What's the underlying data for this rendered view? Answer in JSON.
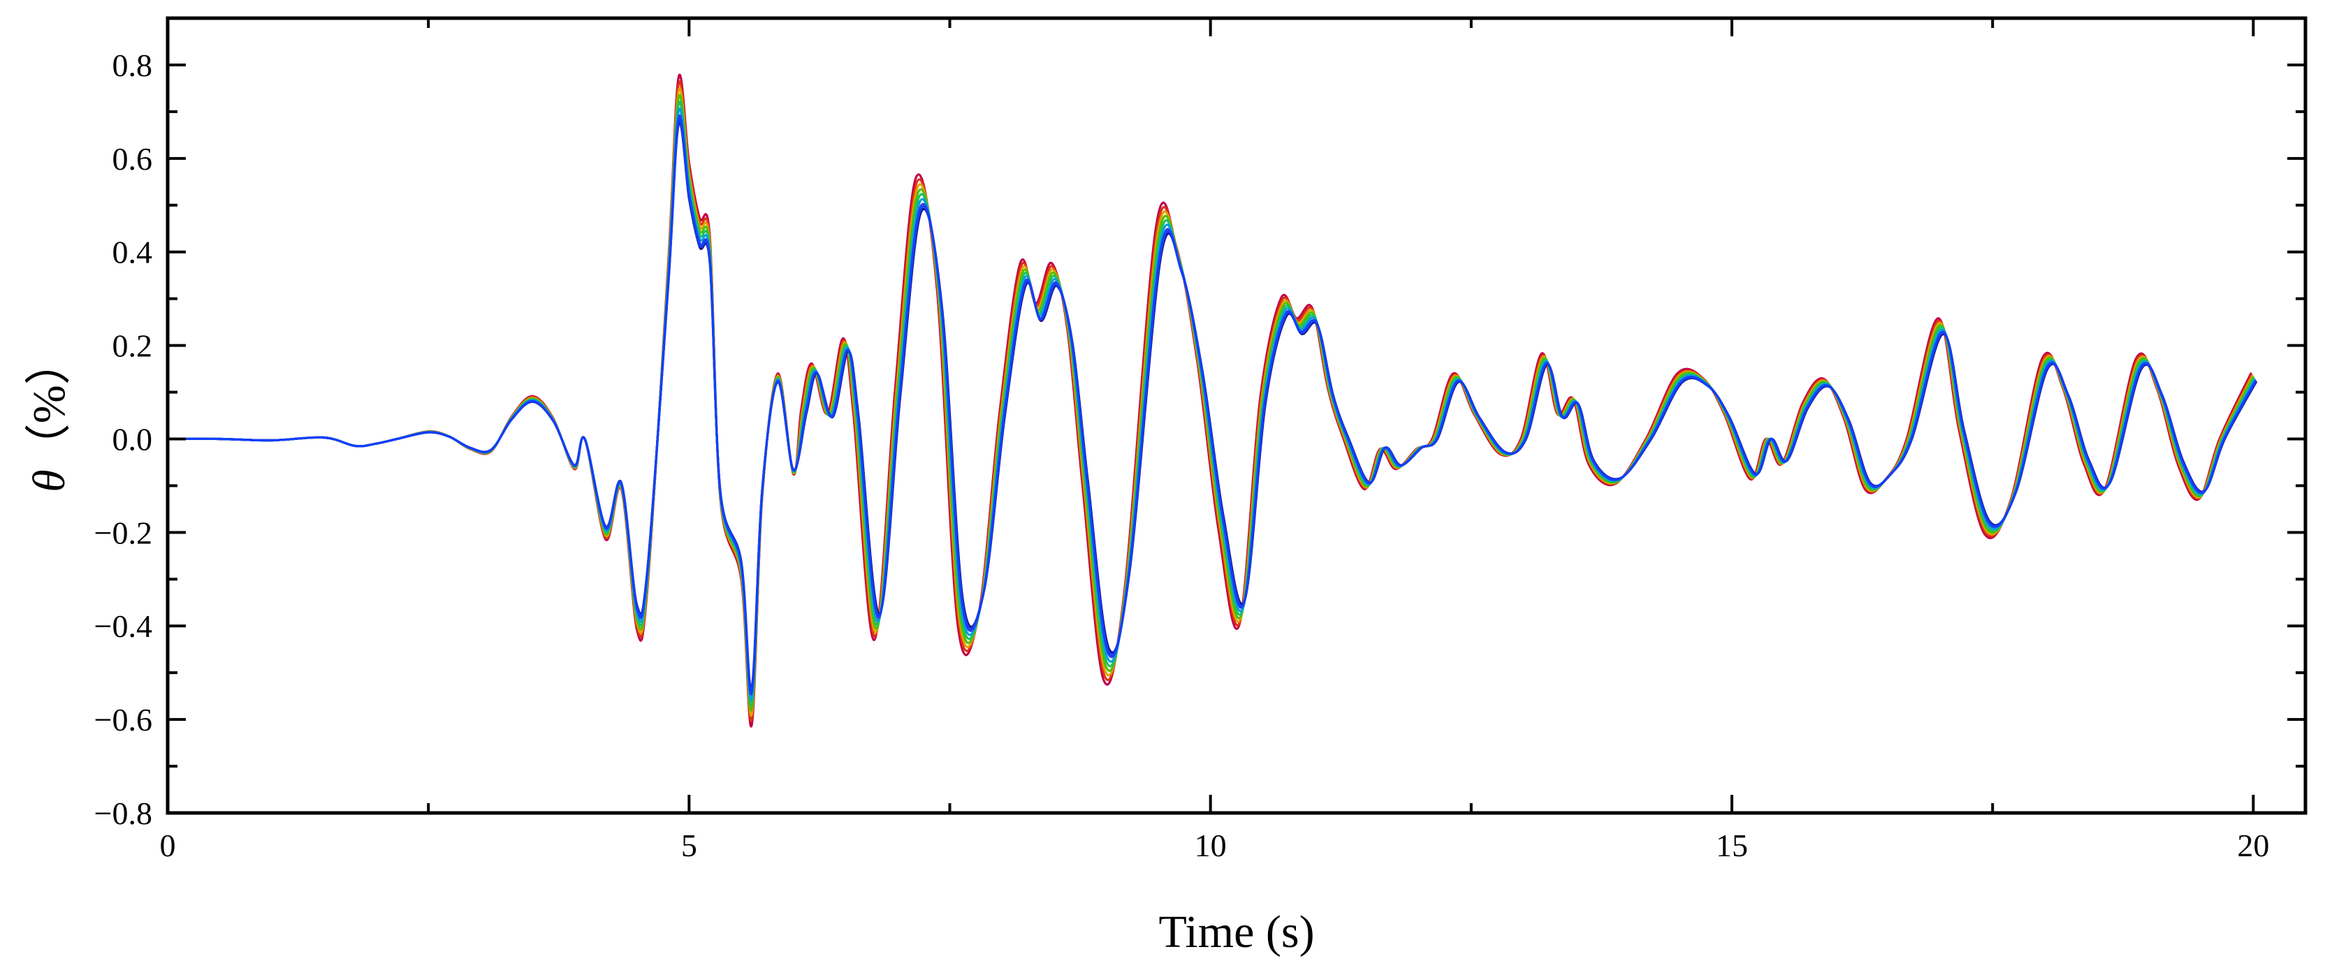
{
  "chart_data": {
    "type": "line",
    "xlabel": "Time (s)",
    "ylabel_symbol": "θ",
    "ylabel_unit": "（%）",
    "xlim": [
      0,
      20.5
    ],
    "ylim": [
      -0.8,
      0.9
    ],
    "x_ticks": [
      0,
      5,
      10,
      15,
      20
    ],
    "y_ticks": [
      -0.8,
      -0.6,
      -0.4,
      -0.2,
      0.0,
      0.2,
      0.4,
      0.6,
      0.8
    ],
    "x_tick_labels": [
      "0",
      "5",
      "10",
      "15",
      "20"
    ],
    "y_tick_labels": [
      "−0.8",
      "−0.6",
      "−0.4",
      "−0.2",
      "0.0",
      "0.2",
      "0.4",
      "0.6",
      "0.8"
    ],
    "grid": false,
    "legend": "none",
    "base_x": [
      0,
      0.5,
      1.0,
      1.5,
      1.8,
      2.0,
      2.2,
      2.5,
      2.7,
      2.9,
      3.1,
      3.3,
      3.5,
      3.7,
      3.9,
      4.0,
      4.2,
      4.35,
      4.5,
      4.6,
      4.8,
      4.9,
      5.0,
      5.1,
      5.2,
      5.3,
      5.5,
      5.6,
      5.7,
      5.85,
      6.0,
      6.1,
      6.2,
      6.35,
      6.5,
      6.6,
      6.8,
      7.0,
      7.2,
      7.4,
      7.6,
      7.8,
      8.0,
      8.2,
      8.35,
      8.5,
      8.65,
      8.8,
      9.0,
      9.2,
      9.5,
      9.7,
      9.9,
      10.1,
      10.3,
      10.5,
      10.7,
      10.85,
      11.0,
      11.15,
      11.3,
      11.5,
      11.65,
      11.8,
      12.0,
      12.15,
      12.35,
      12.55,
      12.8,
      13.0,
      13.2,
      13.35,
      13.5,
      13.65,
      13.9,
      14.2,
      14.5,
      14.75,
      14.95,
      15.2,
      15.35,
      15.5,
      15.7,
      15.9,
      16.1,
      16.3,
      16.5,
      16.7,
      17.0,
      17.2,
      17.45,
      17.7,
      18.0,
      18.2,
      18.4,
      18.6,
      18.9,
      19.1,
      19.3,
      19.5,
      19.7,
      20.0
    ],
    "base_y": [
      0,
      0,
      -0.003,
      0.003,
      -0.015,
      -0.01,
      0,
      0.015,
      0.005,
      -0.02,
      -0.025,
      0.045,
      0.085,
      0.04,
      -0.06,
      0,
      -0.2,
      -0.1,
      -0.38,
      -0.3,
      0.35,
      0.72,
      0.55,
      0.44,
      0.4,
      -0.12,
      -0.28,
      -0.57,
      -0.12,
      0.13,
      -0.07,
      0.06,
      0.15,
      0.05,
      0.2,
      0.05,
      -0.4,
      0.1,
      0.52,
      0.3,
      -0.37,
      -0.35,
      0.05,
      0.35,
      0.27,
      0.35,
      0.22,
      -0.1,
      -0.48,
      -0.3,
      0.42,
      0.38,
      0.15,
      -0.18,
      -0.37,
      0.08,
      0.28,
      0.24,
      0.26,
      0.1,
      0.0,
      -0.1,
      -0.02,
      -0.06,
      -0.02,
      0.0,
      0.13,
      0.05,
      -0.03,
      0.0,
      0.17,
      0.05,
      0.08,
      -0.05,
      -0.09,
      0.0,
      0.13,
      0.12,
      0.05,
      -0.08,
      0.0,
      -0.05,
      0.07,
      0.12,
      0.04,
      -0.1,
      -0.08,
      0.0,
      0.24,
      0.02,
      -0.19,
      -0.12,
      0.16,
      0.1,
      -0.05,
      -0.1,
      0.16,
      0.1,
      -0.05,
      -0.12,
      0.0,
      0.13
    ],
    "series": [
      {
        "color": "#c0004a",
        "scale": 1.075,
        "shift": 0.0
      },
      {
        "color": "#e03010",
        "scale": 1.055,
        "shift": 0.006
      },
      {
        "color": "#e0a000",
        "scale": 1.035,
        "shift": 0.012
      },
      {
        "color": "#50c000",
        "scale": 1.015,
        "shift": 0.018
      },
      {
        "color": "#20c060",
        "scale": 0.995,
        "shift": 0.024
      },
      {
        "color": "#00a0e0",
        "scale": 0.975,
        "shift": 0.03
      },
      {
        "color": "#3040e0",
        "scale": 0.955,
        "shift": 0.036
      },
      {
        "color": "#1a1080",
        "scale": 0.935,
        "shift": 0.042
      },
      {
        "color": "#1040ff",
        "scale": 0.945,
        "shift": 0.038
      }
    ]
  }
}
